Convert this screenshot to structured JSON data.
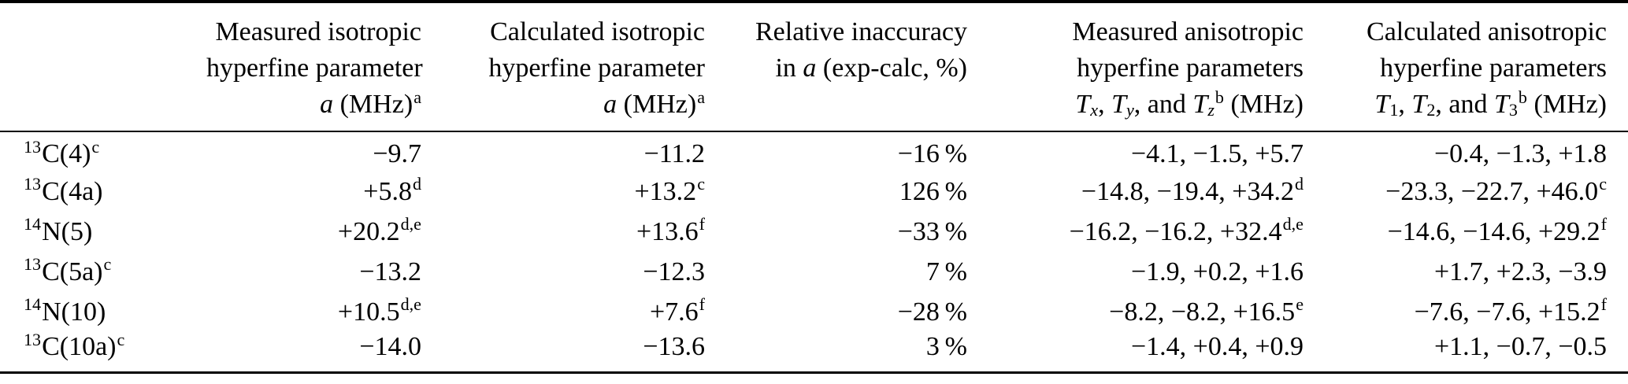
{
  "page": {
    "background": "#ffffff",
    "text_color": "#000000",
    "rule_color": "#000000"
  },
  "table": {
    "header": {
      "cols": [
        {
          "id": "nucleus",
          "lines": []
        },
        {
          "id": "measured-isotropic",
          "lines": [
            [
              {
                "t": "Measured isotropic"
              }
            ],
            [
              {
                "t": "hyperfine parameter"
              }
            ],
            [
              {
                "t": "a",
                "s": "i"
              },
              {
                "t": " (MHz)"
              },
              {
                "t": "a",
                "s": "sup"
              }
            ]
          ]
        },
        {
          "id": "calculated-isotropic",
          "lines": [
            [
              {
                "t": "Calculated isotropic"
              }
            ],
            [
              {
                "t": "hyperfine parameter"
              }
            ],
            [
              {
                "t": "a",
                "s": "i"
              },
              {
                "t": " (MHz)"
              },
              {
                "t": "a",
                "s": "sup"
              }
            ]
          ]
        },
        {
          "id": "relative-inaccuracy",
          "lines": [
            [
              {
                "t": "Relative inaccuracy"
              }
            ],
            [
              {
                "t": "in "
              },
              {
                "t": "a",
                "s": "i"
              },
              {
                "t": " (exp-calc, %)"
              }
            ]
          ]
        },
        {
          "id": "measured-anisotropic",
          "lines": [
            [
              {
                "t": "Measured anisotropic"
              }
            ],
            [
              {
                "t": "hyperfine parameters"
              }
            ],
            [
              {
                "t": "T",
                "s": "i"
              },
              {
                "t": "x",
                "s": "isub"
              },
              {
                "t": ", "
              },
              {
                "t": "T",
                "s": "i"
              },
              {
                "t": "y",
                "s": "isub"
              },
              {
                "t": ", and "
              },
              {
                "t": "T",
                "s": "i"
              },
              {
                "t": "z",
                "s": "isub"
              },
              {
                "t": "b",
                "s": "sup"
              },
              {
                "t": " (MHz)"
              }
            ]
          ]
        },
        {
          "id": "calculated-anisotropic",
          "lines": [
            [
              {
                "t": "Calculated anisotropic"
              }
            ],
            [
              {
                "t": "hyperfine parameters"
              }
            ],
            [
              {
                "t": "T",
                "s": "i"
              },
              {
                "t": "1",
                "s": "sub"
              },
              {
                "t": ", "
              },
              {
                "t": "T",
                "s": "i"
              },
              {
                "t": "2",
                "s": "sub"
              },
              {
                "t": ", and "
              },
              {
                "t": "T",
                "s": "i"
              },
              {
                "t": "3",
                "s": "sub"
              },
              {
                "t": "b",
                "s": "sup"
              },
              {
                "t": " (MHz)"
              }
            ]
          ]
        }
      ]
    },
    "rows": [
      {
        "cells": [
          [
            {
              "t": "13",
              "s": "sup"
            },
            {
              "t": "C(4)"
            },
            {
              "t": "c",
              "s": "sup"
            }
          ],
          [
            {
              "t": "−9.7"
            }
          ],
          [
            {
              "t": "−11.2"
            }
          ],
          [
            {
              "t": "−16 %"
            }
          ],
          [
            {
              "t": "−4.1, −1.5, +5.7"
            }
          ],
          [
            {
              "t": "−0.4, −1.3, +1.8"
            }
          ]
        ]
      },
      {
        "cells": [
          [
            {
              "t": "13",
              "s": "sup"
            },
            {
              "t": "C(4a)"
            }
          ],
          [
            {
              "t": "+5.8"
            },
            {
              "t": "d",
              "s": "sup"
            }
          ],
          [
            {
              "t": "+13.2"
            },
            {
              "t": "c",
              "s": "sup"
            }
          ],
          [
            {
              "t": "126 %"
            }
          ],
          [
            {
              "t": "−14.8, −19.4, +34.2"
            },
            {
              "t": "d",
              "s": "sup"
            }
          ],
          [
            {
              "t": "−23.3, −22.7, +46.0"
            },
            {
              "t": "c",
              "s": "sup"
            }
          ]
        ]
      },
      {
        "cells": [
          [
            {
              "t": "14",
              "s": "sup"
            },
            {
              "t": "N(5)"
            }
          ],
          [
            {
              "t": "+20.2"
            },
            {
              "t": "d,e",
              "s": "sup"
            }
          ],
          [
            {
              "t": "+13.6"
            },
            {
              "t": "f",
              "s": "sup"
            }
          ],
          [
            {
              "t": "−33 %"
            }
          ],
          [
            {
              "t": "−16.2, −16.2, +32.4"
            },
            {
              "t": "d,e",
              "s": "sup"
            }
          ],
          [
            {
              "t": "−14.6, −14.6, +29.2"
            },
            {
              "t": "f",
              "s": "sup"
            }
          ]
        ]
      },
      {
        "cells": [
          [
            {
              "t": "13",
              "s": "sup"
            },
            {
              "t": "C(5a)"
            },
            {
              "t": "c",
              "s": "sup"
            }
          ],
          [
            {
              "t": "−13.2"
            }
          ],
          [
            {
              "t": "−12.3"
            }
          ],
          [
            {
              "t": "7 %"
            }
          ],
          [
            {
              "t": "−1.9, +0.2, +1.6"
            }
          ],
          [
            {
              "t": "+1.7, +2.3, −3.9"
            }
          ]
        ]
      },
      {
        "cells": [
          [
            {
              "t": "14",
              "s": "sup"
            },
            {
              "t": "N(10)"
            }
          ],
          [
            {
              "t": "+10.5"
            },
            {
              "t": "d,e",
              "s": "sup"
            }
          ],
          [
            {
              "t": "+7.6"
            },
            {
              "t": "f",
              "s": "sup"
            }
          ],
          [
            {
              "t": "−28 %"
            }
          ],
          [
            {
              "t": "−8.2, −8.2, +16.5"
            },
            {
              "t": "e",
              "s": "sup"
            }
          ],
          [
            {
              "t": "−7.6, −7.6, +15.2"
            },
            {
              "t": "f",
              "s": "sup"
            }
          ]
        ]
      },
      {
        "cells": [
          [
            {
              "t": "13",
              "s": "sup"
            },
            {
              "t": "C(10a)"
            },
            {
              "t": "c",
              "s": "sup"
            }
          ],
          [
            {
              "t": "−14.0"
            }
          ],
          [
            {
              "t": "−13.6"
            }
          ],
          [
            {
              "t": "3 %"
            }
          ],
          [
            {
              "t": "−1.4, +0.4, +0.9"
            }
          ],
          [
            {
              "t": "+1.1, −0.7, −0.5"
            }
          ]
        ]
      }
    ]
  }
}
